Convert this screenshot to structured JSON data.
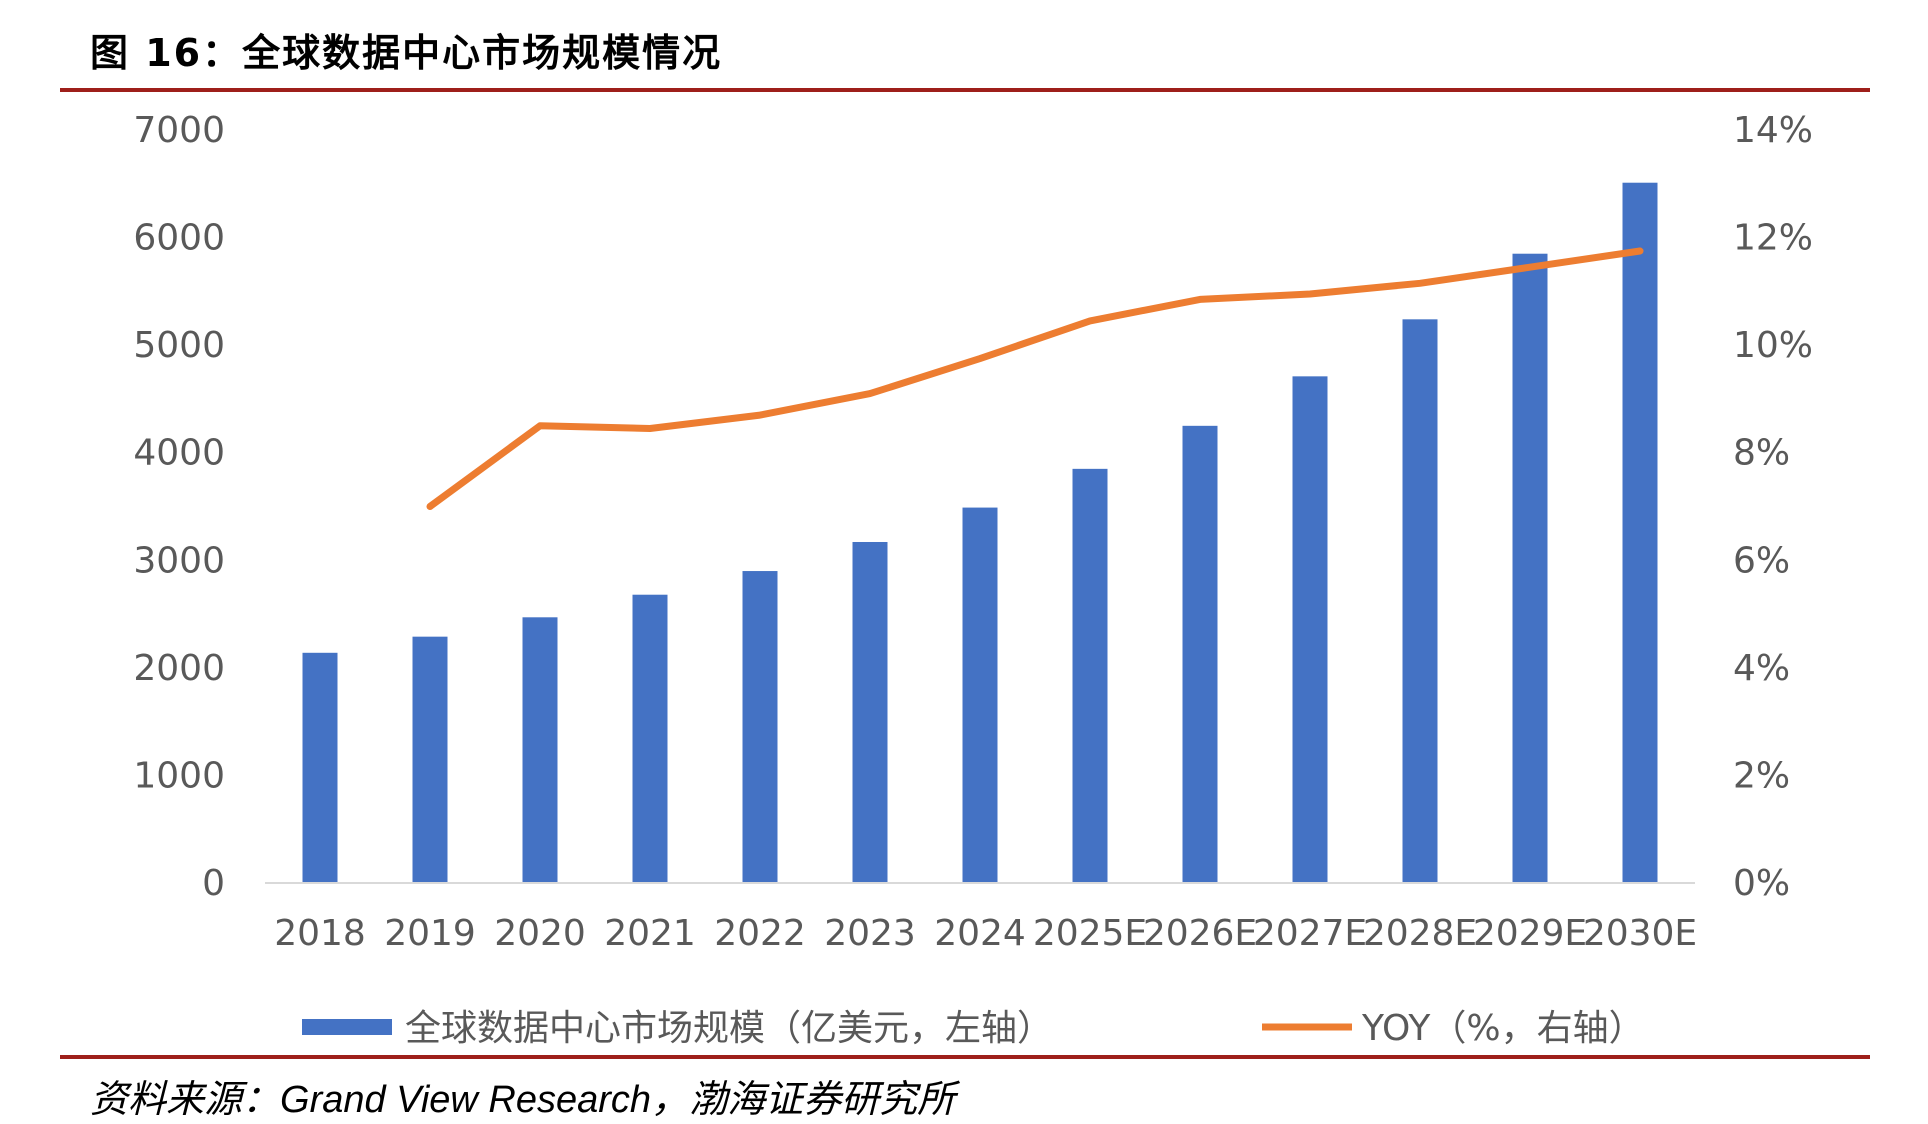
{
  "figure": {
    "title": "图 16：全球数据中心市场规模情况",
    "source_label": "资料来源：",
    "source_text": "Grand View Research，",
    "source_org": "渤海证券研究所"
  },
  "colors": {
    "bar": "#4472c4",
    "line": "#ed7d31",
    "rule": "#9e1f1a",
    "axis": "#d9d9d9",
    "tick_text": "#595959"
  },
  "chart_data": {
    "type": "bar",
    "title": "图 16：全球数据中心市场规模情况",
    "categories": [
      "2018",
      "2019",
      "2020",
      "2021",
      "2022",
      "2023",
      "2024",
      "2025E",
      "2026E",
      "2027E",
      "2028E",
      "2029E",
      "2030E"
    ],
    "series": [
      {
        "name": "全球数据中心市场规模（亿美元，左轴）",
        "type": "bar",
        "axis": "left",
        "values": [
          2140,
          2290,
          2470,
          2680,
          2900,
          3170,
          3490,
          3850,
          4250,
          4710,
          5240,
          5850,
          6510
        ]
      },
      {
        "name": "YOY（%，右轴）",
        "type": "line",
        "axis": "right",
        "values": [
          null,
          7.0,
          8.5,
          8.45,
          8.7,
          9.1,
          9.75,
          10.45,
          10.85,
          10.95,
          11.15,
          11.45,
          11.75
        ]
      }
    ],
    "y_left": {
      "lim": [
        0,
        7000
      ],
      "ticks": [
        "0",
        "1000",
        "2000",
        "3000",
        "4000",
        "5000",
        "6000",
        "7000"
      ]
    },
    "y_right": {
      "lim": [
        0,
        14
      ],
      "ticks": [
        "0%",
        "2%",
        "4%",
        "6%",
        "8%",
        "10%",
        "12%",
        "14%"
      ]
    },
    "xlabel": "",
    "ylabel": "",
    "grid": false,
    "legend_position": "bottom"
  }
}
